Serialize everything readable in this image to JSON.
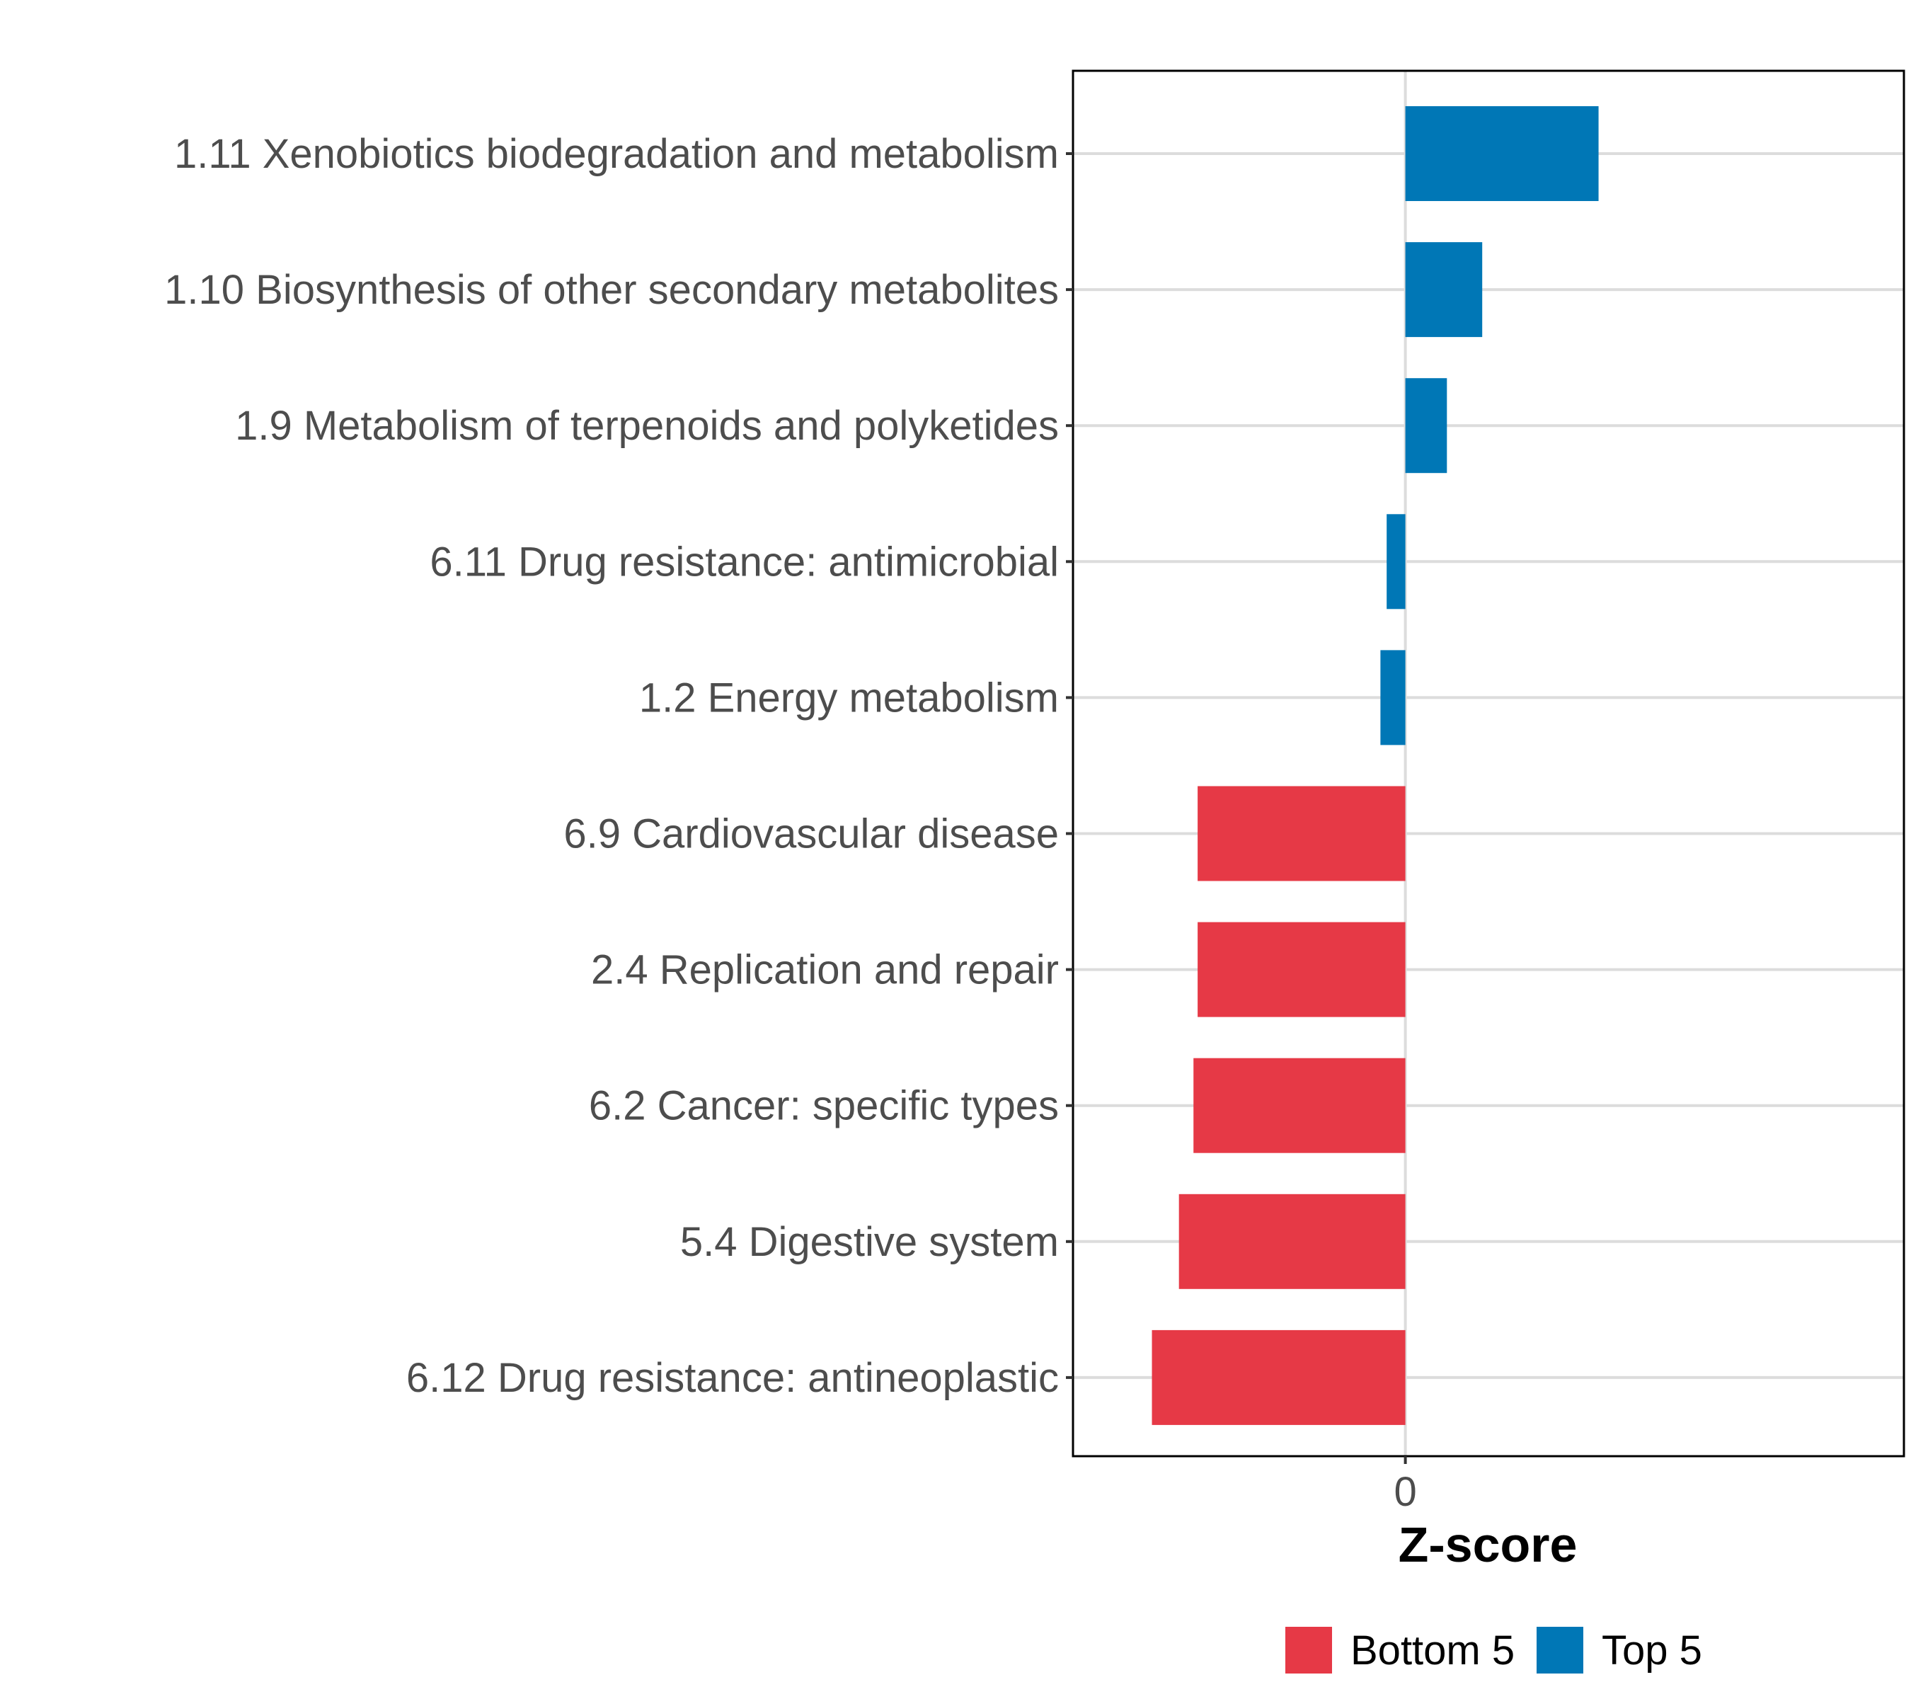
{
  "chart_data": {
    "type": "bar",
    "orientation": "horizontal",
    "xlabel": "Z-score",
    "x_ticks": [
      0
    ],
    "xlim": [
      -1.6,
      2.4
    ],
    "categories": [
      "1.11 Xenobiotics biodegradation and metabolism",
      "1.10 Biosynthesis of other secondary metabolites",
      "1.9 Metabolism of terpenoids and polyketides",
      "6.11 Drug resistance: antimicrobial",
      "1.2 Energy metabolism",
      "6.9 Cardiovascular disease",
      "2.4 Replication and repair",
      "6.2 Cancer: specific types",
      "5.4 Digestive system",
      "6.12 Drug resistance: antineoplastic"
    ],
    "values": [
      0.93,
      0.37,
      0.2,
      -0.09,
      -0.12,
      -1.0,
      -1.0,
      -1.02,
      -1.09,
      -1.22
    ],
    "groups": [
      "Top 5",
      "Top 5",
      "Top 5",
      "Top 5",
      "Top 5",
      "Bottom 5",
      "Bottom 5",
      "Bottom 5",
      "Bottom 5",
      "Bottom 5"
    ],
    "legend": [
      {
        "label": "Bottom 5",
        "color": "#e63946"
      },
      {
        "label": "Top 5",
        "color": "#0077b6"
      }
    ],
    "legend_position": "bottom",
    "grid": true
  }
}
